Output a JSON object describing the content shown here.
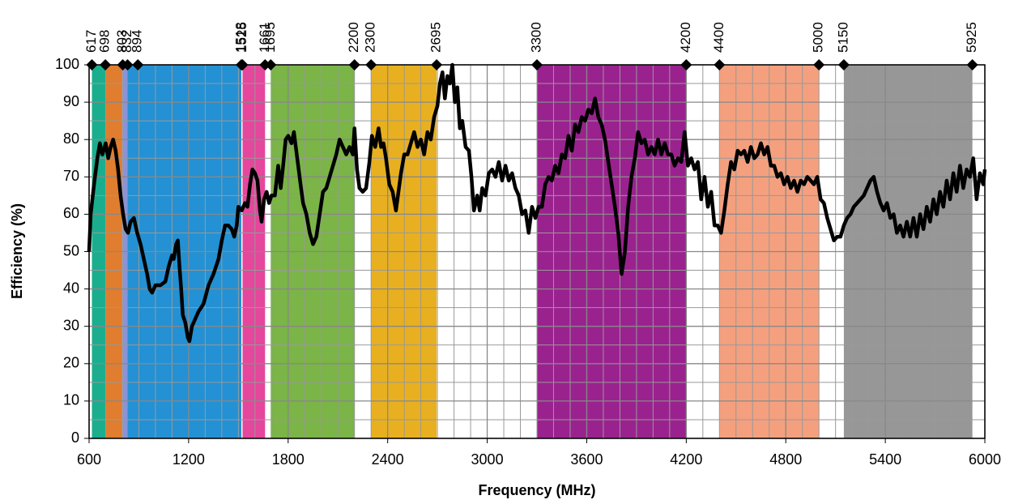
{
  "chart_data": {
    "type": "line",
    "xlabel": "Frequency (MHz)",
    "ylabel": "Efficiency (%)",
    "xlim": [
      600,
      6000
    ],
    "ylim": [
      0,
      100
    ],
    "xticks": [
      600,
      1200,
      1800,
      2400,
      3000,
      3600,
      4200,
      4800,
      5400,
      6000
    ],
    "yticks": [
      0,
      10,
      20,
      30,
      40,
      50,
      60,
      70,
      80,
      90,
      100
    ],
    "grid": true,
    "bands": [
      {
        "start": 617,
        "end": 698,
        "color": "#1aae8f"
      },
      {
        "start": 698,
        "end": 803,
        "color": "#e07d2e"
      },
      {
        "start": 803,
        "end": 832,
        "color": "#8a93d6"
      },
      {
        "start": 832,
        "end": 1518,
        "color": "#2391d4"
      },
      {
        "start": 1525,
        "end": 1661,
        "color": "#e4479c"
      },
      {
        "start": 1695,
        "end": 2200,
        "color": "#7bb447"
      },
      {
        "start": 2300,
        "end": 2695,
        "color": "#e8b020"
      },
      {
        "start": 3300,
        "end": 4200,
        "color": "#9a228e"
      },
      {
        "start": 4400,
        "end": 5000,
        "color": "#f4a07e"
      },
      {
        "start": 5150,
        "end": 5925,
        "color": "#979797"
      }
    ],
    "band_edges": [
      617,
      698,
      803,
      832,
      894,
      1518,
      1525,
      1661,
      1695,
      2200,
      2300,
      2695,
      3300,
      4200,
      4400,
      5000,
      5150,
      5925
    ],
    "x": [
      600,
      610,
      630,
      650,
      665,
      680,
      700,
      715,
      730,
      745,
      760,
      775,
      790,
      805,
      820,
      835,
      850,
      870,
      890,
      910,
      930,
      950,
      965,
      980,
      1000,
      1030,
      1060,
      1080,
      1100,
      1110,
      1125,
      1135,
      1145,
      1155,
      1165,
      1180,
      1195,
      1205,
      1220,
      1240,
      1260,
      1290,
      1320,
      1350,
      1380,
      1400,
      1420,
      1440,
      1460,
      1475,
      1490,
      1500,
      1520,
      1540,
      1555,
      1570,
      1585,
      1600,
      1615,
      1630,
      1640,
      1655,
      1670,
      1685,
      1700,
      1720,
      1740,
      1755,
      1770,
      1785,
      1800,
      1820,
      1835,
      1855,
      1875,
      1890,
      1910,
      1930,
      1950,
      1970,
      1990,
      2010,
      2030,
      2050,
      2070,
      2090,
      2110,
      2130,
      2150,
      2170,
      2190,
      2200,
      2215,
      2230,
      2250,
      2270,
      2290,
      2305,
      2325,
      2345,
      2360,
      2375,
      2390,
      2410,
      2430,
      2450,
      2465,
      2480,
      2500,
      2520,
      2540,
      2560,
      2580,
      2600,
      2620,
      2640,
      2660,
      2680,
      2700,
      2715,
      2730,
      2745,
      2760,
      2775,
      2790,
      2805,
      2820,
      2835,
      2850,
      2870,
      2890,
      2905,
      2920,
      2940,
      2955,
      2970,
      2990,
      3010,
      3030,
      3050,
      3070,
      3090,
      3110,
      3130,
      3150,
      3170,
      3190,
      3210,
      3230,
      3250,
      3270,
      3290,
      3310,
      3330,
      3350,
      3370,
      3390,
      3410,
      3430,
      3450,
      3470,
      3490,
      3510,
      3530,
      3550,
      3570,
      3590,
      3610,
      3630,
      3650,
      3670,
      3690,
      3710,
      3730,
      3750,
      3770,
      3790,
      3810,
      3830,
      3850,
      3870,
      3890,
      3910,
      3930,
      3950,
      3970,
      3990,
      4010,
      4030,
      4050,
      4070,
      4090,
      4110,
      4130,
      4150,
      4170,
      4190,
      4210,
      4230,
      4250,
      4270,
      4290,
      4310,
      4330,
      4350,
      4370,
      4390,
      4410,
      4430,
      4450,
      4470,
      4490,
      4510,
      4530,
      4550,
      4570,
      4590,
      4610,
      4630,
      4650,
      4670,
      4690,
      4710,
      4730,
      4750,
      4770,
      4790,
      4810,
      4830,
      4850,
      4870,
      4890,
      4910,
      4930,
      4950,
      4970,
      4990,
      5010,
      5030,
      5050,
      5070,
      5090,
      5110,
      5130,
      5150,
      5170,
      5190,
      5210,
      5230,
      5250,
      5270,
      5290,
      5310,
      5330,
      5350,
      5370,
      5390,
      5410,
      5430,
      5450,
      5470,
      5490,
      5510,
      5530,
      5550,
      5570,
      5590,
      5610,
      5630,
      5650,
      5670,
      5690,
      5710,
      5730,
      5750,
      5770,
      5790,
      5810,
      5830,
      5850,
      5870,
      5890,
      5910,
      5930,
      5950,
      5970,
      5990,
      6000
    ],
    "series": [
      {
        "color": "#000000",
        "values": [
          50,
          60,
          68,
          75,
          79,
          76,
          79,
          75,
          78,
          80,
          77,
          72,
          65,
          60,
          56,
          55,
          58,
          59,
          55,
          52,
          48,
          44,
          40,
          39,
          41,
          41,
          42,
          46,
          49,
          48,
          52,
          53,
          46,
          40,
          33,
          31,
          27,
          26,
          30,
          32,
          34,
          36,
          41,
          44,
          48,
          53,
          57,
          57,
          56,
          54,
          57,
          62,
          61,
          63,
          62,
          68,
          72,
          71,
          69,
          61,
          58,
          64,
          66,
          63,
          65,
          65,
          73,
          67,
          73,
          80,
          81,
          79,
          82,
          75,
          68,
          63,
          60,
          55,
          52,
          54,
          60,
          66,
          67,
          70,
          73,
          76,
          80,
          78,
          76,
          78,
          76,
          83,
          72,
          67,
          66,
          67,
          74,
          81,
          78,
          83,
          78,
          79,
          75,
          68,
          66,
          61,
          66,
          71,
          76,
          76,
          79,
          82,
          78,
          80,
          76,
          82,
          80,
          86,
          89,
          95,
          98,
          91,
          97,
          95,
          100,
          90,
          94,
          83,
          85,
          78,
          77,
          70,
          61,
          65,
          61,
          67,
          65,
          71,
          72,
          70,
          74,
          69,
          73,
          69,
          71,
          67,
          65,
          60,
          61,
          55,
          62,
          59,
          62,
          62,
          68,
          70,
          69,
          73,
          71,
          76,
          75,
          81,
          77,
          84,
          82,
          86,
          85,
          88,
          87,
          91,
          86,
          84,
          80,
          74,
          68,
          62,
          55,
          44,
          50,
          62,
          70,
          75,
          82,
          79,
          80,
          76,
          78,
          76,
          80,
          76,
          79,
          76,
          76,
          73,
          75,
          74,
          82,
          73,
          75,
          72,
          74,
          64,
          70,
          62,
          66,
          57,
          57,
          55,
          61,
          68,
          74,
          72,
          77,
          76,
          77,
          74,
          78,
          75,
          76,
          79,
          76,
          78,
          73,
          73,
          70,
          71,
          68,
          70,
          67,
          69,
          66,
          69,
          68,
          70,
          69,
          68,
          70,
          64,
          63,
          59,
          56,
          53,
          54,
          54,
          57,
          59,
          60,
          62,
          63,
          64,
          65,
          67,
          69,
          70,
          66,
          63,
          61,
          63,
          59,
          60,
          55,
          57,
          54,
          58,
          54,
          59,
          54,
          60,
          56,
          62,
          58,
          64,
          60,
          66,
          62,
          69,
          64,
          71,
          66,
          73,
          67,
          72,
          70,
          75,
          64,
          71,
          68,
          72
        ]
      }
    ]
  }
}
